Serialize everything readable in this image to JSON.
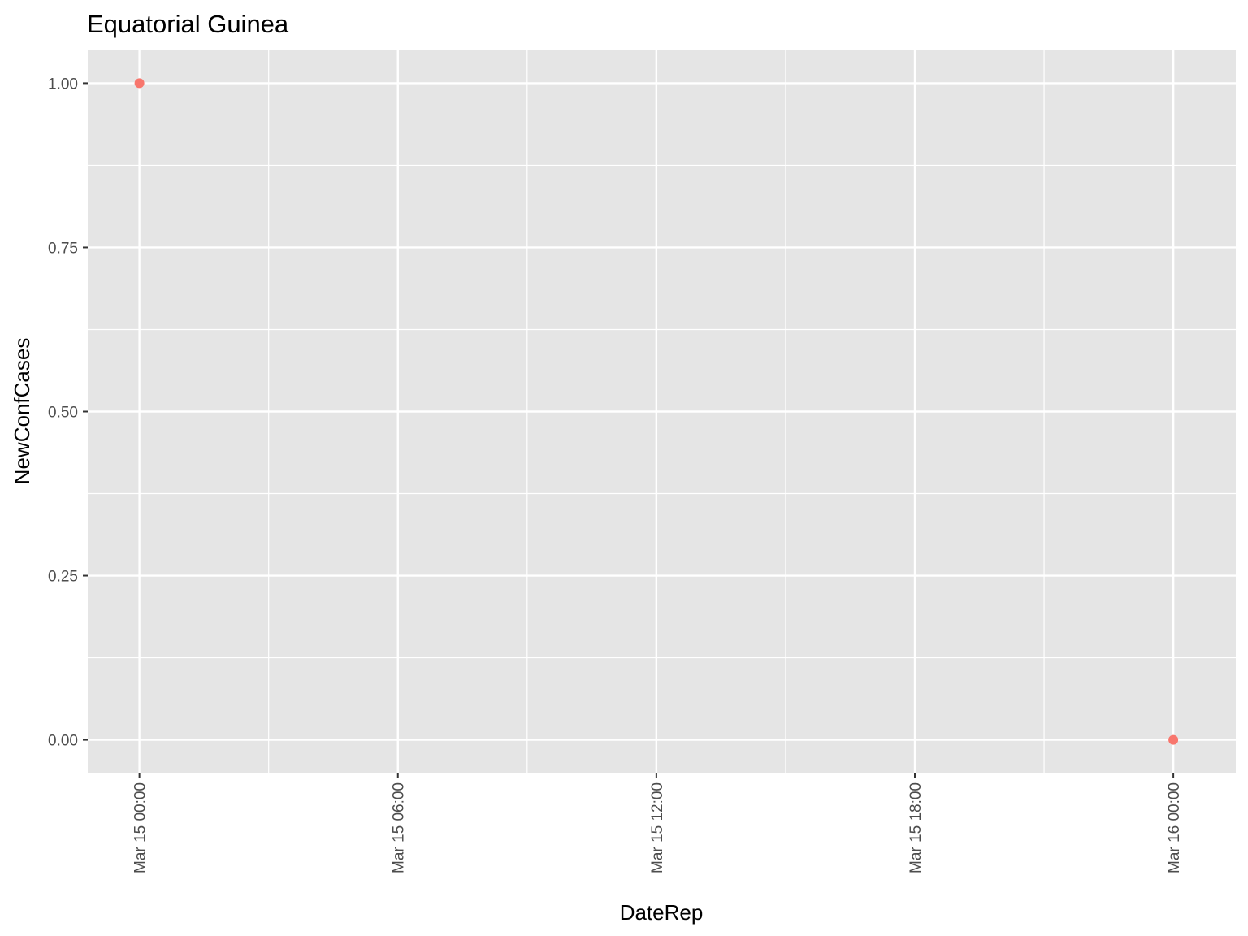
{
  "chart_data": {
    "type": "scatter",
    "title": "Equatorial Guinea",
    "xlabel": "DateRep",
    "ylabel": "NewConfCases",
    "x_scale": "datetime",
    "xlim": [
      "2020-03-14T22:48:00",
      "2020-03-16T01:27:00"
    ],
    "ylim": [
      -0.05,
      1.05
    ],
    "x_ticks": [
      {
        "value": "2020-03-15T00:00:00",
        "label": "Mar 15 00:00"
      },
      {
        "value": "2020-03-15T06:00:00",
        "label": "Mar 15 06:00"
      },
      {
        "value": "2020-03-15T12:00:00",
        "label": "Mar 15 12:00"
      },
      {
        "value": "2020-03-15T18:00:00",
        "label": "Mar 15 18:00"
      },
      {
        "value": "2020-03-16T00:00:00",
        "label": "Mar 16 00:00"
      }
    ],
    "y_ticks": [
      {
        "value": 0,
        "label": "0.00"
      },
      {
        "value": 0.25,
        "label": "0.25"
      },
      {
        "value": 0.5,
        "label": "0.50"
      },
      {
        "value": 0.75,
        "label": "0.75"
      },
      {
        "value": 1,
        "label": "1.00"
      }
    ],
    "grid": true,
    "legend": "none",
    "colors": {
      "point": "#F8766D",
      "panel": "#E5E5E5",
      "grid": "#FFFFFF",
      "tick_label": "#4D4D4D",
      "tick_mark": "#333333"
    },
    "series": [
      {
        "points": [
          {
            "x": "2020-03-15T00:00:00",
            "y": 1
          },
          {
            "x": "2020-03-16T00:00:00",
            "y": 0
          }
        ]
      }
    ]
  }
}
